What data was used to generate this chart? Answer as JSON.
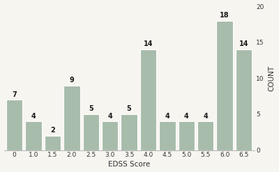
{
  "categories": [
    "0",
    "1.0",
    "1.5",
    "2.0",
    "2.5",
    "3.0",
    "3.5",
    "4.0",
    "4.5",
    "5.0",
    "5.5",
    "6.0",
    "6.5"
  ],
  "values": [
    7,
    4,
    2,
    9,
    5,
    4,
    5,
    14,
    4,
    4,
    4,
    18,
    14
  ],
  "bar_color": "#a8bcab",
  "bar_edgecolor": "#ffffff",
  "xlabel": "EDSS Score",
  "ylabel": "COUNT",
  "ylim": [
    0,
    20
  ],
  "yticks": [
    0,
    5,
    10,
    15,
    20
  ],
  "bar_width": 0.85,
  "axis_label_fontsize": 7.5,
  "tick_fontsize": 6.5,
  "background_color": "#f7f5f0",
  "annotation_fontsize": 7,
  "annotation_fontweight": "bold"
}
